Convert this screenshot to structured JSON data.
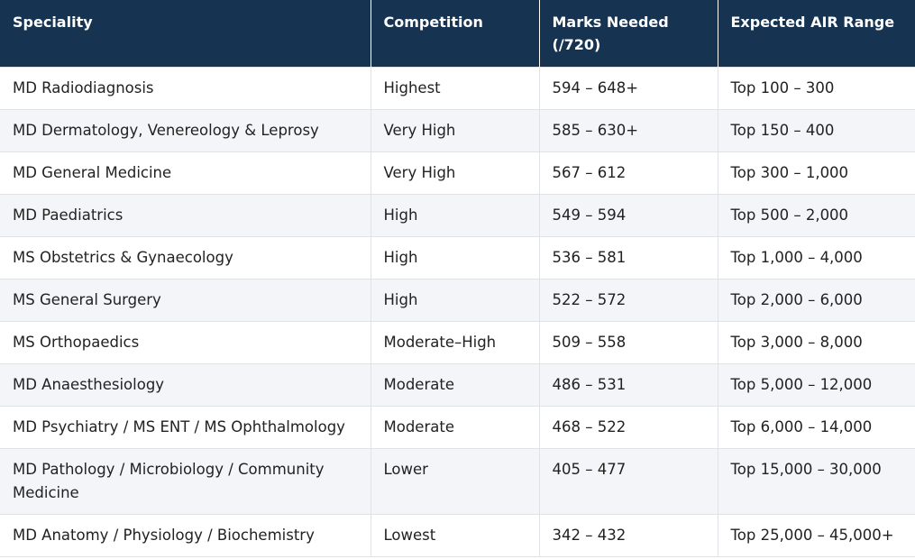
{
  "table": {
    "headers": [
      "Speciality",
      "Competition",
      "Marks Needed (/720)",
      "Expected AIR Range"
    ],
    "rows": [
      [
        "MD Radiodiagnosis",
        "Highest",
        "594 – 648+",
        "Top 100 – 300"
      ],
      [
        "MD Dermatology, Venereology & Leprosy",
        "Very High",
        "585 – 630+",
        "Top 150 – 400"
      ],
      [
        "MD General Medicine",
        "Very High",
        "567 – 612",
        "Top 300 – 1,000"
      ],
      [
        "MD Paediatrics",
        "High",
        "549 – 594",
        "Top 500 – 2,000"
      ],
      [
        "MS Obstetrics & Gynaecology",
        "High",
        "536 – 581",
        "Top 1,000 – 4,000"
      ],
      [
        "MS General Surgery",
        "High",
        "522 – 572",
        "Top 2,000 – 6,000"
      ],
      [
        "MS Orthopaedics",
        "Moderate–High",
        "509 – 558",
        "Top 3,000 – 8,000"
      ],
      [
        "MD Anaesthesiology",
        "Moderate",
        "486 – 531",
        "Top 5,000 – 12,000"
      ],
      [
        "MD Psychiatry / MS ENT / MS Ophthalmology",
        "Moderate",
        "468 – 522",
        "Top 6,000 – 14,000"
      ],
      [
        "MD Pathology / Microbiology / Community Medicine",
        "Lower",
        "405 – 477",
        "Top 15,000 – 30,000"
      ],
      [
        "MD Anatomy / Physiology / Biochemistry",
        "Lowest",
        "342 – 432",
        "Top 25,000 – 45,000+"
      ]
    ]
  }
}
